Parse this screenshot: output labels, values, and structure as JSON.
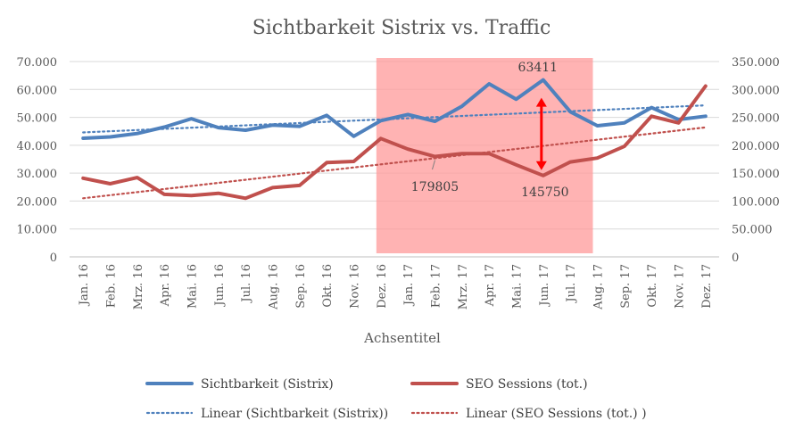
{
  "chart_data": {
    "type": "line",
    "title": "Sichtbarkeit Sistrix vs. Traffic",
    "xlabel": "Achsentitel",
    "categories": [
      "Jan. 16",
      "Feb. 16",
      "Mrz. 16",
      "Apr. 16",
      "Mai. 16",
      "Jun. 16",
      "Jul. 16",
      "Aug. 16",
      "Sep. 16",
      "Okt. 16",
      "Nov. 16",
      "Dez. 16",
      "Jan. 17",
      "Feb. 17",
      "Mrz. 17",
      "Apr. 17",
      "Mai. 17",
      "Jun. 17",
      "Jul. 17",
      "Aug. 17",
      "Sep. 17",
      "Okt. 17",
      "Nov. 17",
      "Dez. 17"
    ],
    "y_left": {
      "ylim": [
        0,
        70000
      ],
      "ticks": [
        0,
        10000,
        20000,
        30000,
        40000,
        50000,
        60000,
        70000
      ],
      "tick_labels": [
        "0",
        "10.000",
        "20.000",
        "30.000",
        "40.000",
        "50.000",
        "60.000",
        "70.000"
      ]
    },
    "y_right": {
      "ylim": [
        0,
        350000
      ],
      "ticks": [
        0,
        50000,
        100000,
        150000,
        200000,
        250000,
        300000,
        350000
      ],
      "tick_labels": [
        "0",
        "50.000",
        "100.000",
        "150.000",
        "200.000",
        "250.000",
        "300.000",
        "350.000"
      ]
    },
    "series": [
      {
        "name": "Sichtbarkeit (Sistrix)",
        "axis": "left",
        "color": "#4F81BD",
        "values": [
          42500,
          43000,
          44200,
          46500,
          49500,
          46300,
          45400,
          47200,
          46800,
          50700,
          43200,
          48800,
          51000,
          48600,
          54000,
          62000,
          56500,
          63411,
          52000,
          47000,
          48000,
          53500,
          49200,
          50400
        ]
      },
      {
        "name": "SEO Sessions (tot.)",
        "axis": "right",
        "color": "#C0504D",
        "values": [
          141000,
          131000,
          142000,
          112000,
          110000,
          114000,
          105000,
          124000,
          128000,
          169000,
          171000,
          212000,
          193000,
          179805,
          185000,
          185000,
          165000,
          145750,
          170000,
          177000,
          198000,
          252000,
          240000,
          306000
        ]
      }
    ],
    "trendlines": [
      {
        "name": "Linear (Sichtbarkeit (Sistrix))",
        "axis": "left",
        "color": "#4F81BD",
        "start": 44600,
        "end": 54300
      },
      {
        "name": "Linear (SEO Sessions (tot.) )",
        "axis": "right",
        "color": "#C0504D",
        "start": 105000,
        "end": 232000
      }
    ],
    "highlight": {
      "from": "Dez. 16",
      "to": "Aug. 17",
      "color": "#FF9999"
    },
    "annotations": {
      "peak_label": "63411",
      "low_label_1": "179805",
      "low_label_2": "145750"
    },
    "legend_position": "bottom"
  }
}
